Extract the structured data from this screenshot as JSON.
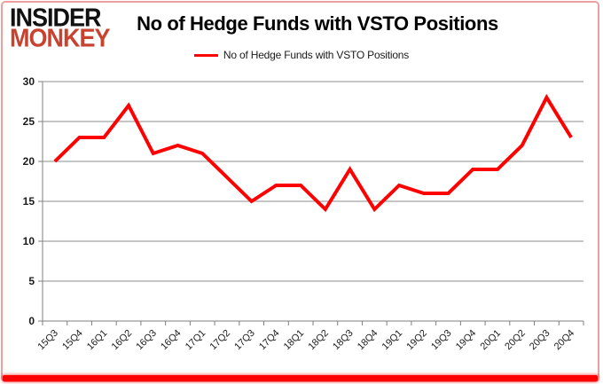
{
  "logo": {
    "line1": "INSIDER",
    "line2": "MONKEY"
  },
  "header": {
    "title": "No of Hedge Funds with VSTO Positions"
  },
  "legend": {
    "label": "No of Hedge Funds with VSTO Positions"
  },
  "chart_data": {
    "type": "line",
    "title": "No of Hedge Funds with VSTO Positions",
    "series_name": "No of Hedge Funds with VSTO Positions",
    "categories": [
      "15Q3",
      "15Q4",
      "16Q1",
      "16Q2",
      "16Q3",
      "16Q4",
      "17Q1",
      "17Q2",
      "17Q3",
      "17Q4",
      "18Q1",
      "18Q2",
      "18Q3",
      "18Q4",
      "19Q1",
      "19Q2",
      "19Q3",
      "19Q4",
      "20Q1",
      "20Q2",
      "20Q3",
      "20Q4"
    ],
    "values": [
      20,
      23,
      23,
      27,
      21,
      22,
      21,
      18,
      15,
      17,
      17,
      14,
      19,
      14,
      17,
      16,
      16,
      19,
      19,
      22,
      28,
      23
    ],
    "xlabel": "",
    "ylabel": "",
    "ylim": [
      0,
      30
    ],
    "yticks": [
      0,
      5,
      10,
      15,
      20,
      25,
      30
    ],
    "grid": "horizontal",
    "legend_position": "top-center"
  },
  "colors": {
    "line": "#ff0000",
    "grid": "#8c8c8c",
    "axis": "#7f7f7f",
    "logo_black": "#111111",
    "logo_red": "#c8432f",
    "border_pink": "#ec9f9f",
    "bottom_bar": "#ff0000",
    "text": "#1a1a1a"
  }
}
